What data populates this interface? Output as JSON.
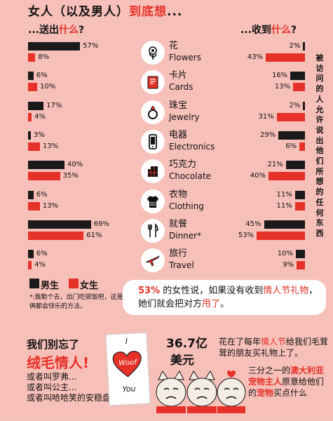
{
  "title_parts": [
    "女人（以及男人）",
    "到底想",
    "..."
  ],
  "sent_header": [
    "...送出",
    "什么",
    "?"
  ],
  "received_header": [
    "...收到",
    "什么",
    "?"
  ],
  "colors": {
    "men": "#1a1a1a",
    "women": "#e63128",
    "accent": "#e63128"
  },
  "categories": [
    {
      "zh": "花",
      "en": "Flowers",
      "icon": "flower-icon",
      "sent_men": "57%",
      "sent_women": "8%",
      "recv_men": "2%",
      "recv_women": "43%"
    },
    {
      "zh": "卡片",
      "en": "Cards",
      "icon": "card-icon",
      "sent_men": "6%",
      "sent_women": "10%",
      "recv_men": "16%",
      "recv_women": "13%"
    },
    {
      "zh": "珠宝",
      "en": "Jewelry",
      "icon": "ring-icon",
      "sent_men": "17%",
      "sent_women": "4%",
      "recv_men": "2%",
      "recv_women": "31%"
    },
    {
      "zh": "电器",
      "en": "Electronics",
      "icon": "phone-icon",
      "sent_men": "3%",
      "sent_women": "13%",
      "recv_men": "29%",
      "recv_women": "6%"
    },
    {
      "zh": "巧克力",
      "en": "Chocolate",
      "icon": "chocolate-icon",
      "sent_men": "40%",
      "sent_women": "35%",
      "recv_men": "21%",
      "recv_women": "40%"
    },
    {
      "zh": "衣物",
      "en": "Clothing",
      "icon": "sweater-icon",
      "sent_men": "6%",
      "sent_women": "13%",
      "recv_men": "11%",
      "recv_women": "11%"
    },
    {
      "zh": "就餐",
      "en": "Dinner*",
      "icon": "cutlery-icon",
      "sent_men": "69%",
      "sent_women": "61%",
      "recv_men": "45%",
      "recv_women": "53%"
    },
    {
      "zh": "旅行",
      "en": "Travel",
      "icon": "plane-icon",
      "sent_men": "6%",
      "sent_women": "4%",
      "recv_men": "10%",
      "recv_women": "9%"
    }
  ],
  "side_note": "被访问的人允许说出他们所想的任何东西",
  "legend": {
    "men": "男生",
    "women": "女生"
  },
  "footnote": "*:我勒个去，出门吃顿饭吧，这是你俩都会快乐的方法。",
  "callout": {
    "pct": "53%",
    "text1": " 的女性说，如果没有收到",
    "hl1": "情人节礼物",
    "text2": "，她们就会把对方",
    "hl2": "甩了",
    "text3": "。"
  },
  "teddy": {
    "heading": "我们别忘了",
    "highlight": "绒毛情人!",
    "lines": [
      "或者叫罗弗...",
      "或者叫公主...",
      "或者叫哈哈笑的安稳盘坐先生..."
    ]
  },
  "card_text": {
    "top": "I",
    "heart": "Woof",
    "bottom": "You"
  },
  "stat": {
    "amount": "36.7亿",
    "unit": "美元",
    "t1": "花在了每年",
    "hl": "情人节",
    "t2": "给我们毛茸茸的朋友买礼物上了。"
  },
  "pets": {
    "t1": "三分之一的",
    "hl1": "澳大利亚宠物主人",
    "t2": "原意给他们的",
    "hl2": "宠物",
    "t3": "买点什么"
  }
}
